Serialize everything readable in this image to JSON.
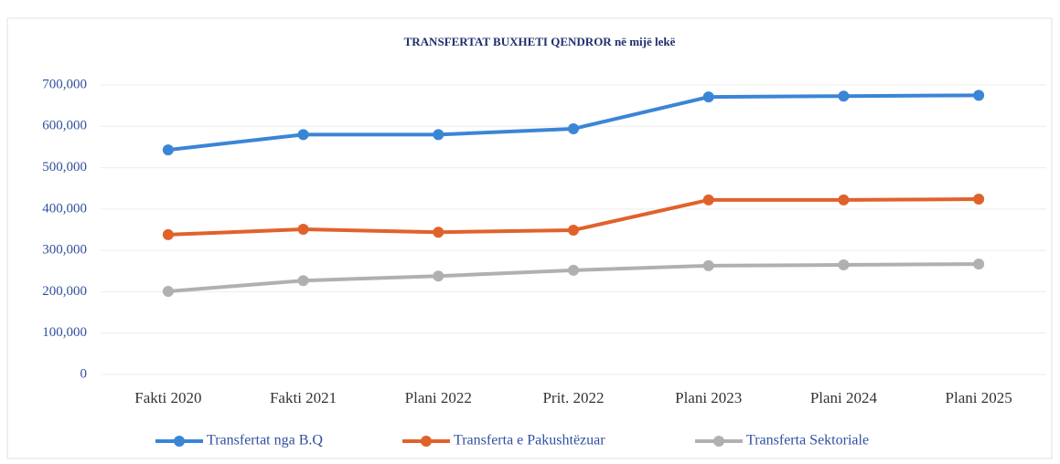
{
  "chart_data": {
    "type": "line",
    "title": "TRANSFERTAT BUXHETI QENDROR në mijë lekë",
    "categories": [
      "Fakti 2020",
      "Fakti 2021",
      "Plani 2022",
      "Prit. 2022",
      "Plani 2023",
      "Plani 2024",
      "Plani 2025"
    ],
    "series": [
      {
        "name": "Transfertat nga B.Q",
        "color": "#3a85d6",
        "values": [
          543000,
          580000,
          580000,
          594000,
          671000,
          673000,
          675000
        ]
      },
      {
        "name": "Transferta e Pakushtëzuar",
        "color": "#e0622a",
        "values": [
          338000,
          351000,
          344000,
          349000,
          422000,
          422000,
          424000
        ]
      },
      {
        "name": "Transferta Sektoriale",
        "color": "#b0b0b0",
        "values": [
          201000,
          227000,
          238000,
          252000,
          263000,
          265000,
          267000
        ]
      }
    ],
    "ylim": [
      0,
      700000
    ],
    "yticks": [
      0,
      {
        "value": 100000,
        "label": "100,000"
      },
      {
        "value": 200000,
        "label": "200,000"
      },
      {
        "value": 300000,
        "label": "300,000"
      },
      {
        "value": 400000,
        "label": "400,000"
      },
      {
        "value": 500000,
        "label": "500,000"
      },
      {
        "value": 600000,
        "label": "600,000"
      },
      {
        "value": 700000,
        "label": "700,000"
      }
    ],
    "grid": true,
    "legend": "bottom"
  }
}
